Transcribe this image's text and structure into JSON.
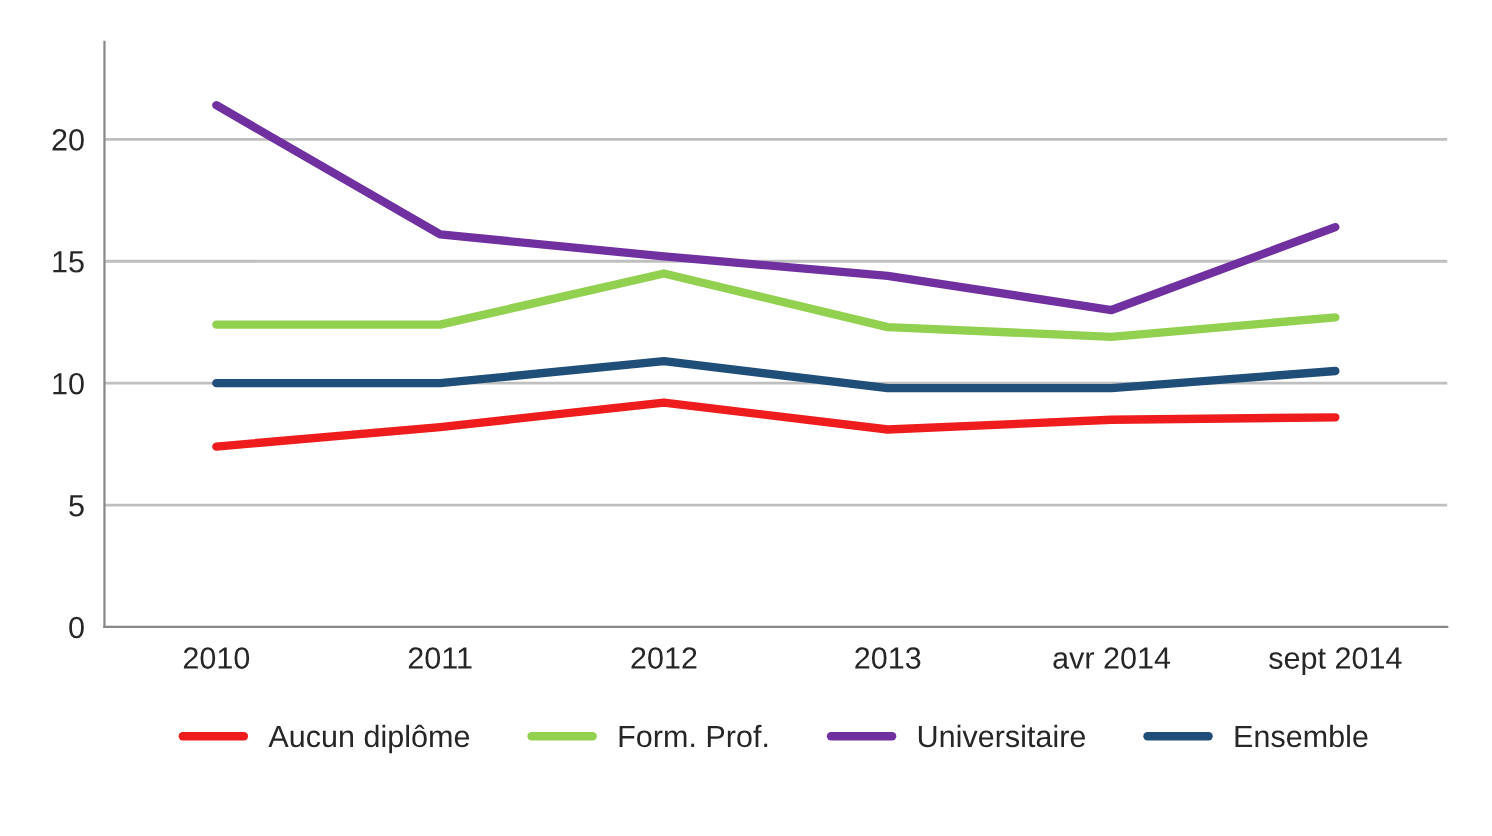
{
  "chart_data": {
    "type": "line",
    "categories": [
      "2010",
      "2011",
      "2012",
      "2013",
      "avr 2014",
      "sept 2014"
    ],
    "series": [
      {
        "name": "Aucun diplôme",
        "color": "#ee1c1c",
        "values": [
          7.4,
          8.2,
          9.2,
          8.1,
          8.5,
          8.6
        ]
      },
      {
        "name": "Form. Prof.",
        "color": "#92d050",
        "values": [
          12.4,
          12.4,
          14.5,
          12.3,
          11.9,
          12.7
        ]
      },
      {
        "name": "Universitaire",
        "color": "#7030a0",
        "values": [
          21.4,
          16.1,
          15.2,
          14.4,
          13.0,
          16.4
        ]
      },
      {
        "name": "Ensemble",
        "color": "#1f4e79",
        "values": [
          10.0,
          10.0,
          10.9,
          9.8,
          9.8,
          10.5
        ]
      }
    ],
    "ylim": [
      0,
      24
    ],
    "yticks": [
      0,
      5,
      10,
      15,
      20
    ],
    "grid": "y",
    "legend": "bottom",
    "marker": "none",
    "line_style": "solid"
  }
}
